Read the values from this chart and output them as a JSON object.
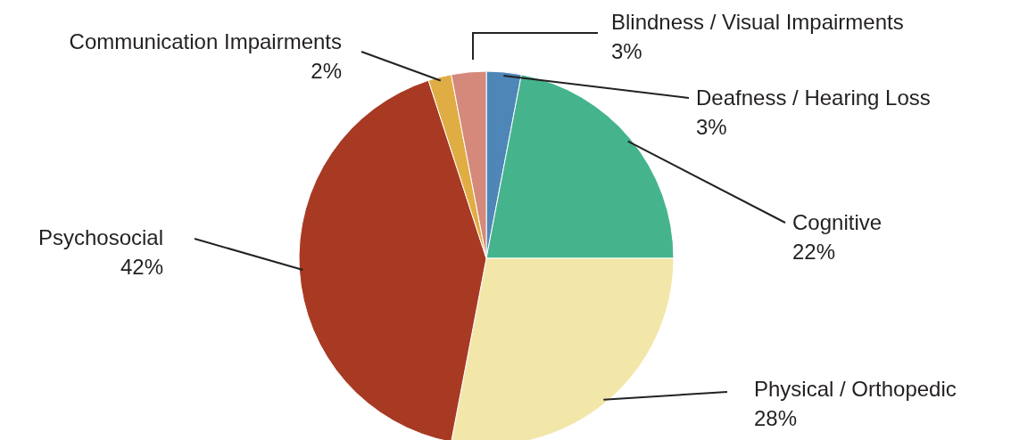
{
  "chart_data": {
    "type": "pie",
    "categories": [
      "Deafness / Hearing Loss",
      "Cognitive",
      "Physical / Orthopedic",
      "Psychosocial",
      "Communication Impairments",
      "Blindness / Visual Impairments"
    ],
    "values": [
      3,
      22,
      28,
      42,
      2,
      3
    ],
    "value_labels": [
      "3%",
      "22%",
      "28%",
      "42%",
      "2%",
      "3%"
    ],
    "colors": [
      "#4f86b8",
      "#45b48c",
      "#f3e6a9",
      "#a83a23",
      "#e0ad45",
      "#d4897a"
    ]
  }
}
